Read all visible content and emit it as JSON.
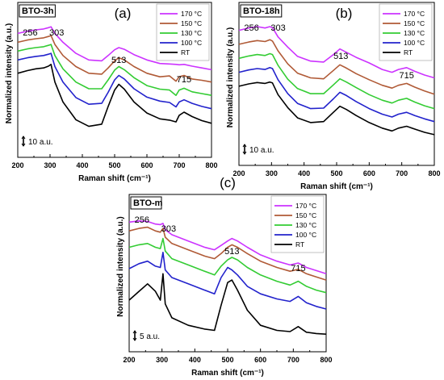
{
  "chart_data": [
    {
      "type": "line",
      "panel_label": "(a)",
      "sample_label": "BTO-3h",
      "xlabel": "Raman shift (cm⁻¹)",
      "ylabel": "Normalized intensity (a.u.)",
      "xlim": [
        200,
        800
      ],
      "xticks": [
        "200",
        "300",
        "400",
        "500",
        "600",
        "700",
        "800"
      ],
      "scale_bar_label": "10 a.u.",
      "peak_labels": [
        {
          "text": "256",
          "x": 256
        },
        {
          "text": "303",
          "x": 303
        },
        {
          "text": "513",
          "x": 513
        },
        {
          "text": "715",
          "x": 715
        }
      ],
      "legend_position": "top-right",
      "x": [
        200,
        230,
        256,
        280,
        295,
        303,
        315,
        340,
        380,
        420,
        460,
        480,
        500,
        513,
        530,
        560,
        600,
        640,
        670,
        690,
        700,
        715,
        740,
        770,
        800
      ],
      "series": [
        {
          "name": "170 °C",
          "color": "#cc33ff",
          "values": [
            4.0,
            4.5,
            4.8,
            5.0,
            5.3,
            5.5,
            4.0,
            2.0,
            -0.5,
            -2.0,
            -2.2,
            -1.0,
            0.3,
            0.8,
            0.4,
            -0.8,
            -2.0,
            -2.8,
            -2.9,
            -3.0,
            -3.1,
            -3.0,
            -3.4,
            -3.8,
            -4.2
          ]
        },
        {
          "name": "150 °C",
          "color": "#b05a36",
          "values": [
            2.0,
            2.5,
            2.8,
            3.0,
            3.3,
            3.5,
            1.5,
            -1.0,
            -3.5,
            -5.0,
            -5.2,
            -3.8,
            -2.2,
            -1.5,
            -2.0,
            -3.5,
            -5.0,
            -5.8,
            -5.6,
            -6.8,
            -5.8,
            -5.5,
            -6.3,
            -6.6,
            -7.0
          ]
        },
        {
          "name": "130 °C",
          "color": "#33cc33",
          "values": [
            0.0,
            0.5,
            0.8,
            1.0,
            1.3,
            1.5,
            -1.0,
            -4.0,
            -7.0,
            -8.5,
            -8.5,
            -6.5,
            -4.3,
            -3.5,
            -4.2,
            -6.0,
            -7.8,
            -8.6,
            -8.8,
            -10.0,
            -8.8,
            -8.4,
            -9.2,
            -9.6,
            -10.0
          ]
        },
        {
          "name": "100 °C",
          "color": "#2222cc",
          "values": [
            -2.0,
            -1.5,
            -1.2,
            -1.0,
            -0.7,
            -0.5,
            -3.5,
            -7.0,
            -10.5,
            -12.0,
            -11.8,
            -9.3,
            -6.5,
            -5.5,
            -6.3,
            -8.5,
            -10.4,
            -11.3,
            -11.6,
            -12.6,
            -11.5,
            -11.0,
            -11.8,
            -12.5,
            -13.0
          ]
        },
        {
          "name": "RT",
          "color": "#000000",
          "values": [
            -5.0,
            -4.4,
            -4.0,
            -3.8,
            -3.4,
            -3.0,
            -7.0,
            -11.5,
            -15.5,
            -17.0,
            -16.5,
            -12.5,
            -8.8,
            -7.5,
            -8.6,
            -11.5,
            -14.0,
            -15.3,
            -15.6,
            -16.0,
            -14.5,
            -13.8,
            -14.8,
            -15.7,
            -16.3
          ]
        }
      ]
    },
    {
      "type": "line",
      "panel_label": "(b)",
      "sample_label": "BTO-18h",
      "xlabel": "Raman shift (cm⁻¹)",
      "ylabel": "Normalized intensity (a.u.)",
      "xlim": [
        200,
        800
      ],
      "xticks": [
        "200",
        "300",
        "400",
        "500",
        "600",
        "700",
        "800"
      ],
      "scale_bar_label": "10 a.u.",
      "peak_labels": [
        {
          "text": "256",
          "x": 256
        },
        {
          "text": "303",
          "x": 303
        },
        {
          "text": "513",
          "x": 513
        },
        {
          "text": "715",
          "x": 715
        }
      ],
      "legend_position": "top-right",
      "x": [
        200,
        230,
        256,
        280,
        295,
        303,
        320,
        350,
        380,
        420,
        460,
        490,
        510,
        530,
        560,
        600,
        640,
        670,
        690,
        715,
        740,
        770,
        800
      ],
      "series": [
        {
          "name": "170 °C",
          "color": "#cc33ff",
          "values": [
            5.0,
            5.5,
            5.8,
            5.5,
            5.8,
            5.6,
            3.6,
            1.4,
            -0.6,
            -1.6,
            -1.8,
            -0.2,
            1.0,
            0.3,
            -0.8,
            -2.0,
            -3.4,
            -4.0,
            -3.4,
            -3.0,
            -3.8,
            -4.6,
            -5.2
          ]
        },
        {
          "name": "150 °C",
          "color": "#b05a36",
          "values": [
            2.0,
            2.5,
            2.8,
            2.6,
            3.0,
            2.7,
            0.6,
            -2.2,
            -4.2,
            -5.2,
            -5.4,
            -3.6,
            -2.4,
            -3.1,
            -4.3,
            -5.6,
            -6.8,
            -7.4,
            -6.8,
            -6.4,
            -7.2,
            -8.0,
            -8.7
          ]
        },
        {
          "name": "130 °C",
          "color": "#33cc33",
          "values": [
            -1.0,
            -0.5,
            -0.2,
            -0.4,
            0.0,
            -0.2,
            -2.5,
            -5.5,
            -7.5,
            -8.6,
            -8.6,
            -6.7,
            -5.4,
            -6.1,
            -7.3,
            -8.8,
            -10.0,
            -10.6,
            -10.0,
            -9.6,
            -10.4,
            -11.2,
            -11.8
          ]
        },
        {
          "name": "100 °C",
          "color": "#2222cc",
          "values": [
            -4.0,
            -3.5,
            -3.2,
            -3.4,
            -3.0,
            -3.2,
            -5.6,
            -8.6,
            -10.7,
            -11.8,
            -11.7,
            -9.7,
            -8.3,
            -9.0,
            -10.3,
            -11.8,
            -13.0,
            -13.6,
            -13.0,
            -12.6,
            -13.3,
            -14.0,
            -14.6
          ]
        },
        {
          "name": "RT",
          "color": "#000000",
          "values": [
            -7.0,
            -6.5,
            -6.2,
            -6.4,
            -6.1,
            -6.3,
            -8.8,
            -11.6,
            -13.8,
            -14.8,
            -14.6,
            -12.6,
            -11.3,
            -12.0,
            -13.3,
            -14.8,
            -16.0,
            -16.6,
            -16.0,
            -15.6,
            -16.2,
            -16.9,
            -17.4
          ]
        }
      ]
    },
    {
      "type": "line",
      "panel_label": "(c)",
      "sample_label": "BTO-m",
      "xlabel": "Raman shift (cm⁻¹)",
      "ylabel": "Normalized intensity (a.u.)",
      "xlim": [
        200,
        800
      ],
      "xticks": [
        "200",
        "300",
        "400",
        "500",
        "600",
        "700",
        "800"
      ],
      "scale_bar_label": "5 a.u.",
      "peak_labels": [
        {
          "text": "256",
          "x": 256
        },
        {
          "text": "303",
          "x": 303
        },
        {
          "text": "513",
          "x": 513
        },
        {
          "text": "715",
          "x": 715
        }
      ],
      "legend_position": "top-right",
      "x": [
        200,
        230,
        256,
        280,
        295,
        303,
        310,
        330,
        380,
        430,
        460,
        480,
        500,
        513,
        530,
        560,
        600,
        650,
        690,
        715,
        740,
        770,
        800
      ],
      "series": [
        {
          "name": "170 °C",
          "color": "#cc33ff",
          "values": [
            4.6,
            4.8,
            4.7,
            4.3,
            4.2,
            4.4,
            3.4,
            2.6,
            1.6,
            0.6,
            0.2,
            0.9,
            1.6,
            2.0,
            1.6,
            0.6,
            -0.6,
            -1.6,
            -2.2,
            -1.9,
            -2.6,
            -3.1,
            -3.6
          ]
        },
        {
          "name": "150 °C",
          "color": "#b05a36",
          "values": [
            3.2,
            3.6,
            3.8,
            3.2,
            3.0,
            3.6,
            2.2,
            1.2,
            0.2,
            -0.8,
            -1.2,
            -0.4,
            0.6,
            1.0,
            0.6,
            -0.4,
            -1.6,
            -2.6,
            -3.2,
            -2.9,
            -3.6,
            -4.1,
            -4.6
          ]
        },
        {
          "name": "130 °C",
          "color": "#33cc33",
          "values": [
            0.6,
            1.0,
            1.2,
            0.6,
            0.4,
            2.0,
            0.0,
            -1.2,
            -2.2,
            -3.2,
            -3.8,
            -2.4,
            -1.4,
            -1.0,
            -1.4,
            -2.6,
            -3.8,
            -4.8,
            -5.4,
            -4.8,
            -5.6,
            -6.2,
            -6.6
          ]
        },
        {
          "name": "100 °C",
          "color": "#2222cc",
          "values": [
            -2.8,
            -2.0,
            -1.6,
            -2.4,
            -2.6,
            -0.2,
            -3.0,
            -4.2,
            -5.2,
            -6.2,
            -6.8,
            -4.2,
            -2.6,
            -3.0,
            -3.8,
            -5.6,
            -6.8,
            -7.6,
            -8.0,
            -7.2,
            -8.2,
            -8.8,
            -9.2
          ]
        },
        {
          "name": "RT",
          "color": "#000000",
          "values": [
            -7.8,
            -6.4,
            -5.2,
            -6.4,
            -7.8,
            -3.6,
            -8.4,
            -10.6,
            -11.8,
            -12.4,
            -12.6,
            -8.6,
            -5.0,
            -4.6,
            -6.2,
            -9.4,
            -11.8,
            -12.6,
            -12.8,
            -12.0,
            -12.9,
            -13.1,
            -13.2
          ]
        }
      ]
    }
  ]
}
